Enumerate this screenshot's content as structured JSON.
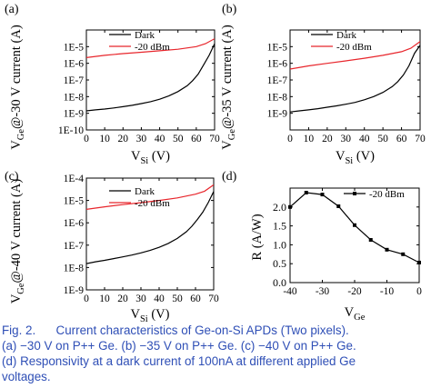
{
  "chart_data": [
    {
      "type": "line",
      "panel_label": "(a)",
      "ylabel_main": "V",
      "ylabel_sub": "Ge",
      "ylabel_rest": "@-30 V current (A)",
      "xlabel_main": "V",
      "xlabel_sub": "Si",
      "xlabel_rest": " (V)",
      "xlim": [
        0,
        70
      ],
      "yscale": "log",
      "ylim": [
        1e-10,
        0.0001
      ],
      "xticks": [
        "0",
        "10",
        "20",
        "30",
        "40",
        "50",
        "60",
        "70"
      ],
      "ytick_labels": [
        "1E-10",
        "1E-9",
        "1E-8",
        "1E-7",
        "1E-6",
        "1E-5"
      ],
      "legend": [
        "Dark",
        "-20 dBm"
      ],
      "series": [
        {
          "name": "Dark",
          "color": "#000000",
          "x": [
            0,
            5,
            10,
            15,
            20,
            25,
            30,
            35,
            40,
            45,
            50,
            55,
            58,
            61,
            64,
            67,
            70
          ],
          "y": [
            1.4e-09,
            1.6e-09,
            1.8e-09,
            2.1e-09,
            2.5e-09,
            3e-09,
            3.8e-09,
            5e-09,
            7e-09,
            1.1e-08,
            2e-08,
            4.5e-08,
            9e-08,
            2.2e-07,
            8e-07,
            3e-06,
            1.5e-05
          ]
        },
        {
          "name": "-20 dBm",
          "color": "#e8262c",
          "x": [
            0,
            10,
            20,
            30,
            40,
            50,
            60,
            65,
            70
          ],
          "y": [
            2.2e-06,
            3e-06,
            3.8e-06,
            4.6e-06,
            5.6e-06,
            7e-06,
            1e-05,
            1.5e-05,
            3e-05
          ]
        }
      ]
    },
    {
      "type": "line",
      "panel_label": "(b)",
      "ylabel_main": "V",
      "ylabel_sub": "Ge",
      "ylabel_rest": "@-35 V current (A)",
      "xlabel_main": "V",
      "xlabel_sub": "Si",
      "xlabel_rest": " (V)",
      "xlim": [
        0,
        70
      ],
      "yscale": "log",
      "ylim": [
        1e-10,
        0.0001
      ],
      "xticks": [
        "0",
        "10",
        "20",
        "30",
        "40",
        "50",
        "60",
        "70"
      ],
      "ytick_labels": [
        "1E-9",
        "1E-8",
        "1E-7",
        "1E-6",
        "1E-5"
      ],
      "legend": [
        "Dark",
        "-20 dBm"
      ],
      "series": [
        {
          "name": "Dark",
          "color": "#000000",
          "x": [
            0,
            5,
            10,
            15,
            20,
            25,
            30,
            35,
            40,
            45,
            50,
            55,
            58,
            61,
            64,
            67,
            70
          ],
          "y": [
            1.2e-09,
            1.4e-09,
            1.6e-09,
            1.9e-09,
            2.3e-09,
            2.8e-09,
            3.5e-09,
            4.5e-09,
            6.5e-09,
            1e-08,
            1.8e-08,
            4e-08,
            8e-08,
            2e-07,
            7e-07,
            4e-06,
            1.2e-05
          ]
        },
        {
          "name": "-20 dBm",
          "color": "#e8262c",
          "x": [
            0,
            10,
            20,
            30,
            40,
            50,
            60,
            65,
            70
          ],
          "y": [
            4.5e-07,
            7e-07,
            1e-06,
            1.4e-06,
            2e-06,
            3e-06,
            5e-06,
            8e-06,
            2e-05
          ]
        }
      ]
    },
    {
      "type": "line",
      "panel_label": "(c)",
      "ylabel_main": "V",
      "ylabel_sub": "Ge",
      "ylabel_rest": "@-40 V current (A)",
      "xlabel_main": "V",
      "xlabel_sub": "Si",
      "xlabel_rest": " (V)",
      "xlim": [
        0,
        70
      ],
      "yscale": "log",
      "ylim": [
        1e-09,
        0.0001
      ],
      "xticks": [
        "0",
        "10",
        "20",
        "30",
        "40",
        "50",
        "60",
        "70"
      ],
      "ytick_labels": [
        "1E-9",
        "1E-8",
        "1E-7",
        "1E-6",
        "1E-5",
        "1E-4"
      ],
      "legend": [
        "Dark",
        "-20 dBm"
      ],
      "series": [
        {
          "name": "Dark",
          "color": "#000000",
          "x": [
            0,
            5,
            10,
            15,
            20,
            25,
            30,
            35,
            40,
            45,
            50,
            55,
            58,
            61,
            64,
            67,
            70
          ],
          "y": [
            1.5e-08,
            1.8e-08,
            2.1e-08,
            2.5e-08,
            3e-08,
            3.6e-08,
            4.5e-08,
            5.8e-08,
            8e-08,
            1.2e-07,
            2e-07,
            4e-07,
            7e-07,
            1.4e-06,
            3e-06,
            8e-06,
            2.5e-05
          ]
        },
        {
          "name": "-20 dBm",
          "color": "#e8262c",
          "x": [
            0,
            10,
            20,
            30,
            40,
            50,
            60,
            65,
            70
          ],
          "y": [
            4e-06,
            5.2e-06,
            6.5e-06,
            8e-06,
            1e-05,
            1.3e-05,
            1.9e-05,
            2.6e-05,
            5e-05
          ]
        }
      ]
    },
    {
      "type": "line",
      "panel_label": "(d)",
      "ylabel_main": "R (A/W)",
      "xlabel_main": "V",
      "xlabel_sub": "Ge",
      "xlabel_rest": "",
      "xlim": [
        -40,
        0
      ],
      "ylim": [
        0,
        2.5
      ],
      "yscale": "linear",
      "xticks": [
        "-40",
        "-30",
        "-20",
        "-10",
        "0"
      ],
      "yticks": [
        "0.0",
        "0.5",
        "1.0",
        "1.5",
        "2.0"
      ],
      "legend": [
        "-20 dBm"
      ],
      "series": [
        {
          "name": "-20 dBm",
          "color": "#000000",
          "marker": "square",
          "x": [
            -40,
            -35,
            -30,
            -25,
            -20,
            -15,
            -10,
            -5,
            0
          ],
          "y": [
            2.0,
            2.38,
            2.33,
            2.02,
            1.52,
            1.13,
            0.87,
            0.75,
            0.53
          ]
        }
      ]
    }
  ],
  "caption": {
    "line1_lead": "Fig. 2.",
    "line1_rest": "Current characteristics of Ge-on-Si APDs (Two pixels).",
    "line2": "(a) −30 V on P++ Ge. (b) −35 V on P++ Ge. (c) −40 V on P++ Ge.",
    "line3": "(d) Responsivity at a dark current of 100nA at different applied Ge",
    "line4": "voltages."
  }
}
